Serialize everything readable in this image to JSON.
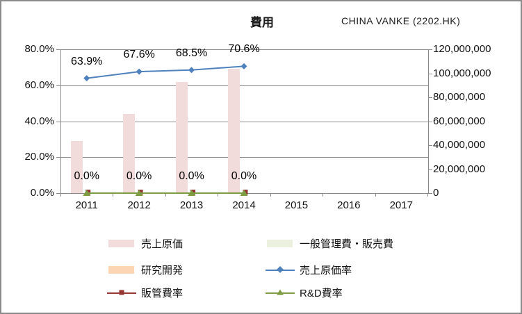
{
  "chart": {
    "title": "費用",
    "annotation": "CHINA VANKE (2202.HK)",
    "left_axis": {
      "ticks": [
        "80.0%",
        "60.0%",
        "40.0%",
        "20.0%",
        "0.0%"
      ],
      "min": 0,
      "max": 80
    },
    "right_axis": {
      "ticks": [
        "120,000,000",
        "100,000,000",
        "80,000,000",
        "60,000,000",
        "40,000,000",
        "20,000,000",
        "0"
      ],
      "min": 0,
      "max": 120000000
    },
    "x_axis": {
      "categories": [
        "2011",
        "2012",
        "2013",
        "2014",
        "2015",
        "2016",
        "2017"
      ]
    },
    "colors": {
      "grid": "#898989",
      "bar_cost_of_sales": "#f2dcdb",
      "bar_sga": "#ebf1de",
      "bar_rnd": "#fcd5b4",
      "line_cost_ratio": "#4f81bd",
      "line_sga_ratio": "#953735",
      "line_rnd_ratio": "#7e9d43"
    }
  },
  "chart_data": {
    "type": "combo-bar-line",
    "title": "費用",
    "categories": [
      "2011",
      "2012",
      "2013",
      "2014",
      "2015",
      "2016",
      "2017"
    ],
    "ylim_left_percent": [
      0,
      80
    ],
    "ylim_right": [
      0,
      120000000
    ],
    "grid": true,
    "legend_position": "bottom",
    "series": [
      {
        "name": "売上原価",
        "type": "bar",
        "axis": "right",
        "color": "#f2dcdb",
        "values": [
          43500000,
          66000000,
          93000000,
          104000000,
          null,
          null,
          null
        ]
      },
      {
        "name": "一般管理費・販売費",
        "type": "bar",
        "axis": "right",
        "color": "#ebf1de",
        "values": [
          0,
          0,
          0,
          0,
          null,
          null,
          null
        ]
      },
      {
        "name": "研究開発",
        "type": "bar",
        "axis": "right",
        "color": "#fcd5b4",
        "values": [
          0,
          0,
          0,
          0,
          null,
          null,
          null
        ]
      },
      {
        "name": "売上原価率",
        "type": "line",
        "axis": "left",
        "marker": "diamond",
        "color": "#4f81bd",
        "values_pct": [
          63.9,
          67.6,
          68.5,
          70.6,
          null,
          null,
          null
        ],
        "labels": [
          "63.9%",
          "67.6%",
          "68.5%",
          "70.6%",
          null,
          null,
          null
        ]
      },
      {
        "name": "販管費率",
        "type": "line",
        "axis": "left",
        "marker": "square",
        "color": "#953735",
        "values_pct": [
          0,
          0,
          0,
          0,
          null,
          null,
          null
        ],
        "labels": [
          null,
          null,
          null,
          null,
          null,
          null,
          null
        ]
      },
      {
        "name": "R&D費率",
        "type": "line",
        "axis": "left",
        "marker": "triangle",
        "color": "#7e9d43",
        "values_pct": [
          0,
          0,
          0,
          0,
          null,
          null,
          null
        ],
        "labels": [
          "0.0%",
          "0.0%",
          "0.0%",
          "0.0%",
          null,
          null,
          null
        ]
      }
    ]
  },
  "legend": {
    "items": [
      {
        "label": "売上原価",
        "swatch": "rect",
        "color": "#f2dcdb"
      },
      {
        "label": "一般管理費・販売費",
        "swatch": "rect",
        "color": "#ebf1de"
      },
      {
        "label": "研究開発",
        "swatch": "rect",
        "color": "#fcd5b4"
      },
      {
        "label": "売上原価率",
        "swatch": "line",
        "marker": "diamond",
        "color": "#4f81bd"
      },
      {
        "label": "販管費率",
        "swatch": "line",
        "marker": "square",
        "color": "#953735"
      },
      {
        "label": "R&D費率",
        "swatch": "line",
        "marker": "triangle",
        "color": "#7e9d43"
      }
    ]
  }
}
